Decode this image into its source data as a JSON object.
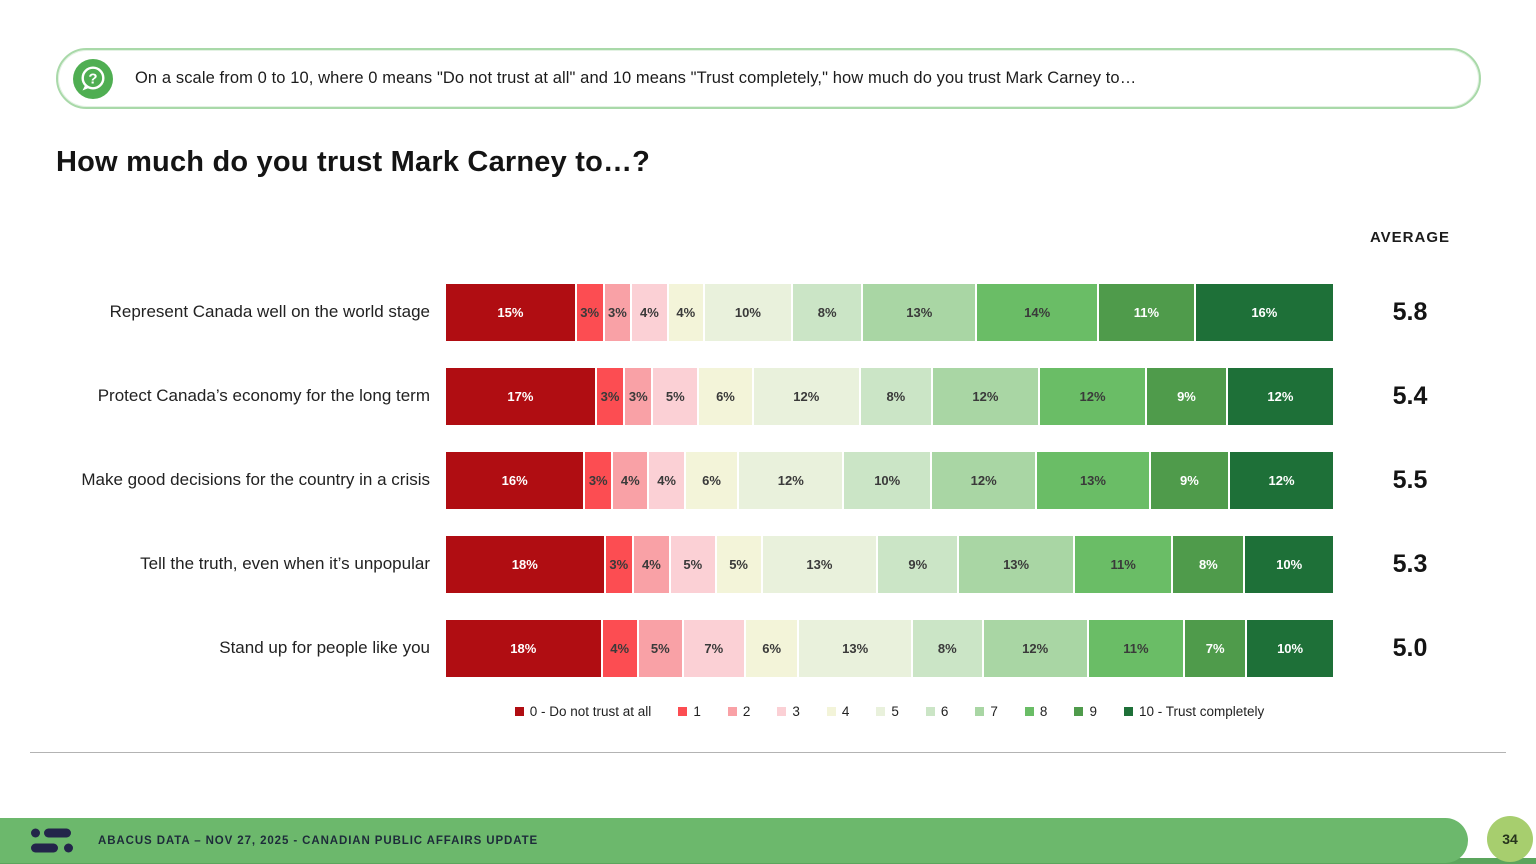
{
  "banner": {
    "icon": "question-speech-bubble-icon",
    "text": "On a scale from 0 to 10, where 0 means \"Do not trust at all\" and 10 means \"Trust completely,\" how much do you trust Mark Carney to…"
  },
  "title": "How much do you trust Mark Carney to…?",
  "average_header": "AVERAGE",
  "chart_data": {
    "type": "bar",
    "subtype": "horizontal-stacked-100pct",
    "title": "How much do you trust Mark Carney to…?",
    "legend_position": "bottom",
    "value_suffix": "%",
    "scale_labels": [
      "0 - Do not trust at all",
      "1",
      "2",
      "3",
      "4",
      "5",
      "6",
      "7",
      "8",
      "9",
      "10 - Trust completely"
    ],
    "colors": [
      "#b00d12",
      "#fc4d52",
      "#f9a1a6",
      "#fbd0d5",
      "#f3f4d9",
      "#e9f1dc",
      "#cbe5c6",
      "#a9d6a4",
      "#6abd66",
      "#4f9b4b",
      "#1e7038"
    ],
    "rows": [
      {
        "label": "Represent Canada well on the world stage",
        "values": [
          15,
          3,
          3,
          4,
          4,
          10,
          8,
          13,
          14,
          11,
          16
        ],
        "average": "5.8"
      },
      {
        "label": "Protect Canada’s economy for the long term",
        "values": [
          17,
          3,
          3,
          5,
          6,
          12,
          8,
          12,
          12,
          9,
          12
        ],
        "average": "5.4"
      },
      {
        "label": "Make good decisions for the country in a crisis",
        "values": [
          16,
          3,
          4,
          4,
          6,
          12,
          10,
          12,
          13,
          9,
          12
        ],
        "average": "5.5"
      },
      {
        "label": "Tell the truth, even when it’s unpopular",
        "values": [
          18,
          3,
          4,
          5,
          5,
          13,
          9,
          13,
          11,
          8,
          10
        ],
        "average": "5.3"
      },
      {
        "label": "Stand up for people like you",
        "values": [
          18,
          4,
          5,
          7,
          6,
          13,
          8,
          12,
          11,
          7,
          10
        ],
        "average": "5.0"
      }
    ]
  },
  "footer": {
    "logo": "abacus-data-logo",
    "text": "ABACUS DATA  – NOV 27, 2025 - CANADIAN PUBLIC AFFAIRS UPDATE",
    "page_number": "34",
    "bar_color": "#6cb86c",
    "page_badge_color": "#a7ce6e"
  }
}
